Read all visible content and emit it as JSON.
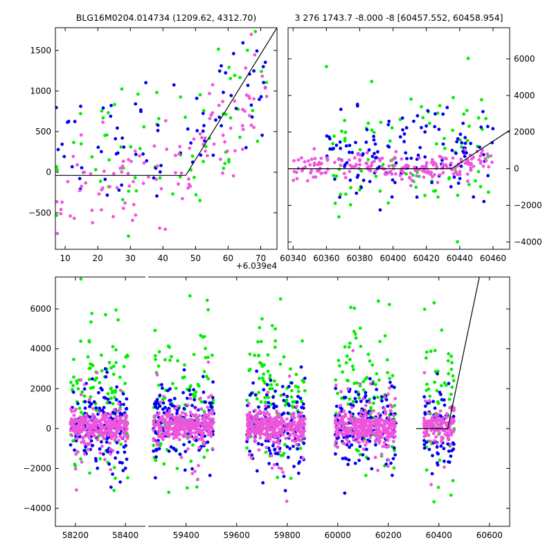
{
  "colors": {
    "green": "#00ee00",
    "blue": "#0000ee",
    "magenta": "#ee55dd",
    "model": "#000000"
  },
  "chart_data": [
    {
      "type": "scatter",
      "title": "BLG16M0204.014734 (1209.62, 4312.70)",
      "xlabel": "",
      "ylabel": "",
      "x_offset_label": "+6.039e4",
      "xlim": [
        7,
        75
      ],
      "ylim": [
        -950,
        1780
      ],
      "xticks": [
        10,
        20,
        30,
        40,
        50,
        60,
        70
      ],
      "yticks": [
        -500,
        0,
        500,
        1000,
        1500
      ],
      "xtick_labels": [
        "10",
        "20",
        "30",
        "40",
        "50",
        "60",
        "70"
      ],
      "ytick_labels": [
        "−500",
        "0",
        "500",
        "1000",
        "1500"
      ],
      "yaxis_side": "left",
      "grid": false,
      "series": [
        {
          "color": "green",
          "count": 70,
          "x_range": [
            7,
            72
          ],
          "trend": [
            [
              7,
              200
            ],
            [
              30,
              300
            ],
            [
              47,
              300
            ],
            [
              72,
              1300
            ]
          ],
          "spread": 450
        },
        {
          "color": "blue",
          "count": 80,
          "x_range": [
            7,
            72
          ],
          "trend": [
            [
              7,
              50
            ],
            [
              30,
              300
            ],
            [
              47,
              450
            ],
            [
              72,
              1300
            ]
          ],
          "spread": 350
        },
        {
          "color": "magenta",
          "count": 110,
          "x_range": [
            7,
            72
          ],
          "trend": [
            [
              7,
              -300
            ],
            [
              25,
              -150
            ],
            [
              47,
              150
            ],
            [
              72,
              1000
            ]
          ],
          "spread": 300
        }
      ],
      "model_line": {
        "x": [
          7,
          47,
          75
        ],
        "y": [
          -40,
          -40,
          1780
        ]
      }
    },
    {
      "type": "scatter",
      "title": "3 276 1743.7 -8.000 -8 [60457.552, 60458.954]",
      "xlabel": "",
      "ylabel": "",
      "xlim": [
        60337,
        60470
      ],
      "ylim": [
        -4400,
        7700
      ],
      "xticks": [
        60340,
        60360,
        60380,
        60400,
        60420,
        60440,
        60460
      ],
      "yticks": [
        -4000,
        -2000,
        0,
        2000,
        4000,
        6000
      ],
      "xtick_labels": [
        "60340",
        "60360",
        "60380",
        "60400",
        "60420",
        "60440",
        "60460"
      ],
      "ytick_labels": [
        "−4000",
        "−2000",
        "0",
        "2000",
        "4000",
        "6000"
      ],
      "yaxis_side": "right",
      "grid": false,
      "series": [
        {
          "color": "green",
          "count": 90,
          "x_range": [
            60360,
            60460
          ],
          "trend": [
            [
              60360,
              400
            ],
            [
              60440,
              600
            ],
            [
              60460,
              1200
            ]
          ],
          "spread": 1900
        },
        {
          "color": "blue",
          "count": 130,
          "x_range": [
            60360,
            60460
          ],
          "trend": [
            [
              60360,
              600
            ],
            [
              60440,
              700
            ],
            [
              60460,
              1500
            ]
          ],
          "spread": 1200
        },
        {
          "color": "magenta",
          "count": 210,
          "x_range": [
            60340,
            60460
          ],
          "trend": [
            [
              60340,
              0
            ],
            [
              60440,
              100
            ],
            [
              60460,
              700
            ]
          ],
          "spread": 350
        }
      ],
      "model_line": {
        "x": [
          60337,
          60435,
          60470
        ],
        "y": [
          0,
          0,
          2100
        ]
      }
    },
    {
      "type": "scatter",
      "title": "",
      "xlabel": "",
      "ylabel": "",
      "broken_axis": true,
      "ylim": [
        -4900,
        7600
      ],
      "yticks": [
        -4000,
        -2000,
        0,
        2000,
        4000,
        6000
      ],
      "ytick_labels": [
        "−4000",
        "−2000",
        "0",
        "2000",
        "4000",
        "6000"
      ],
      "panels": [
        {
          "xlim": [
            58120,
            58480
          ],
          "xticks": [
            58200,
            58400
          ],
          "xtick_labels": [
            "58200",
            "58400"
          ]
        },
        {
          "xlim": [
            59250,
            60680
          ],
          "xticks": [
            59400,
            59600,
            59800,
            60000,
            60200,
            60400,
            60600
          ],
          "xtick_labels": [
            "59400",
            "59600",
            "59800",
            "60000",
            "60200",
            "60400",
            "60600"
          ]
        }
      ],
      "seasons": [
        [
          58180,
          58410
        ],
        [
          59270,
          59510
        ],
        [
          59640,
          59870
        ],
        [
          59990,
          60230
        ],
        [
          60340,
          60460
        ]
      ],
      "series": [
        {
          "color": "green",
          "count_per_season": 110,
          "center": 1500,
          "spread": 1900
        },
        {
          "color": "blue",
          "count_per_season": 160,
          "center": 200,
          "spread": 1100
        },
        {
          "color": "magenta",
          "count_per_season": 320,
          "center": 150,
          "spread": 350
        }
      ],
      "model_line": {
        "x": [
          60310,
          60435,
          60560
        ],
        "y": [
          0,
          0,
          7600
        ]
      }
    }
  ]
}
